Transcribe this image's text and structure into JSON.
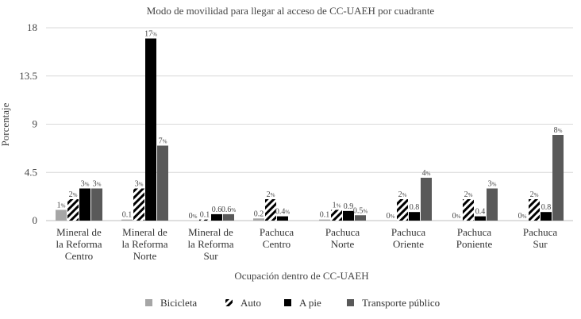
{
  "chart_data": {
    "type": "bar",
    "title": "Modo de movilidad para llegar al acceso de CC-UAEH por cuadrante",
    "xlabel": "Ocupación dentro de CC-UAEH",
    "ylabel": "Porcentaje",
    "ylim": [
      0,
      18
    ],
    "yticks": [
      "0",
      "4.5",
      "9",
      "13.5",
      "18"
    ],
    "grid": true,
    "legend_position": "bottom",
    "categories": [
      [
        "Mineral de",
        "la Reforma",
        "Centro"
      ],
      [
        "Mineral de",
        "la Reforma",
        "Norte"
      ],
      [
        "Mineral de",
        "la Reforma",
        "Sur"
      ],
      [
        "Pachuca",
        "Centro"
      ],
      [
        "Pachuca",
        "Norte"
      ],
      [
        "Pachuca",
        "Oriente"
      ],
      [
        "Pachuca",
        "Poniente"
      ],
      [
        "Pachuca",
        "Sur"
      ]
    ],
    "series": [
      {
        "name": "Bicicleta",
        "color": "#a6a6a6",
        "pattern": "solid",
        "values": [
          1,
          0.1,
          0,
          0.2,
          0.1,
          0,
          0,
          0
        ],
        "labels": [
          "1%",
          "0.1",
          "0%",
          "0.2",
          "0.1",
          "0%",
          "0%",
          "0%"
        ]
      },
      {
        "name": "Auto",
        "color": "#000000",
        "pattern": "diagonal-stripes",
        "values": [
          2,
          3,
          0.1,
          2,
          1,
          2,
          2,
          2
        ],
        "labels": [
          "2%",
          "3%",
          "0.1",
          "2%",
          "1%",
          "2%",
          "2%",
          "2%"
        ]
      },
      {
        "name": "A pie",
        "color": "#000000",
        "pattern": "solid",
        "values": [
          3,
          17,
          0.6,
          0.4,
          0.9,
          0.8,
          0.4,
          0.8
        ],
        "labels": [
          "3%",
          "17%",
          "0.6",
          "0.4%",
          "0.9",
          "0.8",
          "0.4",
          "0.8"
        ]
      },
      {
        "name": "Transporte público",
        "color": "#595959",
        "pattern": "solid",
        "values": [
          3,
          7,
          0.6,
          0,
          0.5,
          4,
          3,
          8
        ],
        "labels": [
          "3%",
          "7%",
          "0.6%",
          "",
          "0.5%",
          "4%",
          "3%",
          "8%"
        ]
      }
    ]
  }
}
